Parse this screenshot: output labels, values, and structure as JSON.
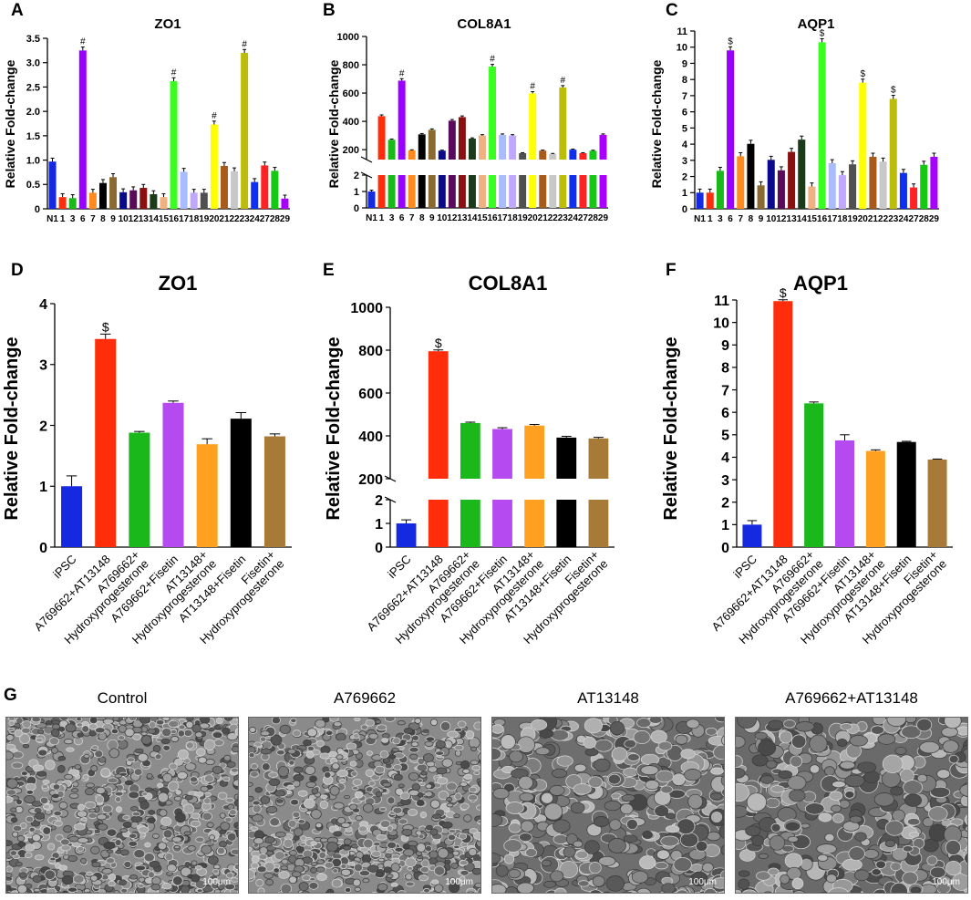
{
  "figure": {
    "panel_labels": [
      "A",
      "B",
      "C",
      "D",
      "E",
      "F",
      "G"
    ]
  },
  "colors": {
    "palette29": [
      "#1529e0",
      "#ff2d0a",
      "#1ab81a",
      "#9a00ff",
      "#ff8a1f",
      "#000000",
      "#8a6a30",
      "#0a0a8a",
      "#5a0a5a",
      "#8a1010",
      "#1a3a1a",
      "#f0b080",
      "#38ff1e",
      "#a8bcff",
      "#c0a8ff",
      "#505050",
      "#ffff00",
      "#a85a1a",
      "#c8c8c8",
      "#bcbc0a",
      "#0f2ff0",
      "#ff2222",
      "#14c814",
      "#a800ff"
    ],
    "six": [
      "#1529e0",
      "#ff2d0a",
      "#1ab81a",
      "#b44af0",
      "#ffa020",
      "#000000",
      "#a87a38"
    ]
  },
  "chart_data": [
    {
      "id": "A",
      "type": "bar",
      "title": "ZO1",
      "ylabel": "Relative Fold-change",
      "categories": [
        "N1",
        "1",
        "3",
        "6",
        "7",
        "8",
        "9",
        "10",
        "12",
        "13",
        "14",
        "15",
        "16",
        "17",
        "18",
        "19",
        "20",
        "21",
        "22",
        "23",
        "24",
        "27",
        "28",
        "29"
      ],
      "values": [
        0.97,
        0.24,
        0.22,
        3.25,
        0.33,
        0.53,
        0.65,
        0.34,
        0.38,
        0.43,
        0.3,
        0.24,
        2.62,
        0.76,
        0.33,
        0.33,
        1.73,
        0.88,
        0.77,
        3.2,
        0.55,
        0.89,
        0.78,
        0.21
      ],
      "ylim": [
        0,
        3.5
      ],
      "yticks": [
        "0",
        "0.5",
        "1.0",
        "1.5",
        "2.0",
        "2.5",
        "3.0",
        "3.5"
      ],
      "annotations": [
        {
          "index": 3,
          "text": "#"
        },
        {
          "index": 12,
          "text": "#"
        },
        {
          "index": 16,
          "text": "#"
        },
        {
          "index": 19,
          "text": "#"
        }
      ]
    },
    {
      "id": "B",
      "type": "bar",
      "title": "COL8A1",
      "ylabel": "Relative Fold-change",
      "categories": [
        "N1",
        "1",
        "3",
        "6",
        "7",
        "8",
        "9",
        "10",
        "12",
        "13",
        "14",
        "15",
        "16",
        "17",
        "18",
        "19",
        "20",
        "21",
        "22",
        "23",
        "24",
        "27",
        "28",
        "29"
      ],
      "values": [
        1,
        437,
        270,
        688,
        195,
        308,
        340,
        193,
        405,
        430,
        278,
        300,
        787,
        305,
        300,
        175,
        598,
        193,
        170,
        640,
        200,
        175,
        192,
        305
      ],
      "broken_axis": {
        "lower": [
          0,
          2
        ],
        "upper": [
          130,
          1000
        ]
      },
      "yticks_upper": [
        "200",
        "400",
        "600",
        "800",
        "1000"
      ],
      "yticks_lower": [
        "0",
        "1",
        "2"
      ],
      "annotations": [
        {
          "index": 3,
          "text": "#"
        },
        {
          "index": 12,
          "text": "#"
        },
        {
          "index": 16,
          "text": "#"
        },
        {
          "index": 19,
          "text": "#"
        }
      ]
    },
    {
      "id": "C",
      "type": "bar",
      "title": "AQP1",
      "ylabel": "Relative Fold-change",
      "categories": [
        "N1",
        "1",
        "3",
        "6",
        "7",
        "8",
        "9",
        "10",
        "12",
        "13",
        "14",
        "15",
        "16",
        "17",
        "18",
        "19",
        "20",
        "21",
        "22",
        "23",
        "24",
        "27",
        "28",
        "29"
      ],
      "values": [
        1.0,
        1.0,
        2.35,
        9.8,
        3.25,
        4.02,
        1.45,
        3.03,
        2.38,
        3.52,
        4.28,
        1.38,
        10.3,
        2.82,
        2.08,
        2.75,
        7.8,
        3.22,
        2.92,
        6.8,
        2.22,
        1.32,
        2.72,
        3.22
      ],
      "ylim": [
        0,
        11
      ],
      "yticks": [
        "0",
        "1",
        "2",
        "3",
        "4",
        "5",
        "6",
        "7",
        "8",
        "9",
        "10",
        "11"
      ],
      "annotations": [
        {
          "index": 3,
          "text": "$"
        },
        {
          "index": 12,
          "text": "$"
        },
        {
          "index": 16,
          "text": "$"
        },
        {
          "index": 19,
          "text": "$"
        }
      ]
    },
    {
      "id": "D",
      "type": "bar",
      "title": "ZO1",
      "ylabel": "Relative Fold-change",
      "categories": [
        "iPSC",
        "A769662+AT13148",
        "A769662+\nHydroxyprogesterone",
        "A769662+Fisetin",
        "AT13148+\nHydroxyprogesterone",
        "AT13148+Fisetin",
        "Fisetin+\nHydroxyprogesterone"
      ],
      "values": [
        1.0,
        3.42,
        1.88,
        2.37,
        1.69,
        2.11,
        1.82
      ],
      "errors": [
        0.17,
        0.08,
        0.02,
        0.03,
        0.09,
        0.1,
        0.04
      ],
      "ylim": [
        0,
        4
      ],
      "yticks": [
        "0",
        "1",
        "2",
        "3",
        "4"
      ],
      "annotations": [
        {
          "index": 1,
          "text": "$"
        }
      ]
    },
    {
      "id": "E",
      "type": "bar",
      "title": "COL8A1",
      "ylabel": "Relative Fold-change",
      "categories": [
        "iPSC",
        "A769662+AT13148",
        "A769662+\nHydroxyprogesterone",
        "A769662+Fisetin",
        "AT13148+\nHydroxyprogesterone",
        "AT13148+Fisetin",
        "Fisetin+\nHydroxyprogesterone"
      ],
      "values": [
        1.0,
        795,
        460,
        432,
        448,
        392,
        388
      ],
      "errors": [
        0.15,
        6,
        4,
        6,
        5,
        6,
        5
      ],
      "broken_axis": {
        "lower": [
          0,
          2
        ],
        "upper": [
          200,
          1000
        ]
      },
      "yticks_upper": [
        "200",
        "400",
        "600",
        "800",
        "1000"
      ],
      "yticks_lower": [
        "0",
        "1",
        "2"
      ],
      "annotations": [
        {
          "index": 1,
          "text": "$"
        }
      ]
    },
    {
      "id": "F",
      "type": "bar",
      "title": "AQP1",
      "ylabel": "Relative Fold-change",
      "categories": [
        "iPSC",
        "A769662+AT13148",
        "A769662+\nHydroxyprogesterone",
        "A769662+Fisetin",
        "AT13148+\nHydroxyprogesterone",
        "AT13148+Fisetin",
        "Fisetin+\nHydroxyprogesterone"
      ],
      "values": [
        1.0,
        10.95,
        6.4,
        4.75,
        4.28,
        4.68,
        3.9
      ],
      "errors": [
        0.18,
        0.06,
        0.06,
        0.25,
        0.05,
        0.03,
        0.02
      ],
      "ylim": [
        0,
        11
      ],
      "yticks": [
        "0",
        "1",
        "2",
        "3",
        "4",
        "5",
        "6",
        "7",
        "8",
        "9",
        "10",
        "11"
      ],
      "annotations": [
        {
          "index": 1,
          "text": "$"
        }
      ]
    }
  ],
  "micrographs": {
    "titles": [
      "Control",
      "A769662",
      "AT13148",
      "A769662+AT13148"
    ],
    "scale": "100μm"
  }
}
